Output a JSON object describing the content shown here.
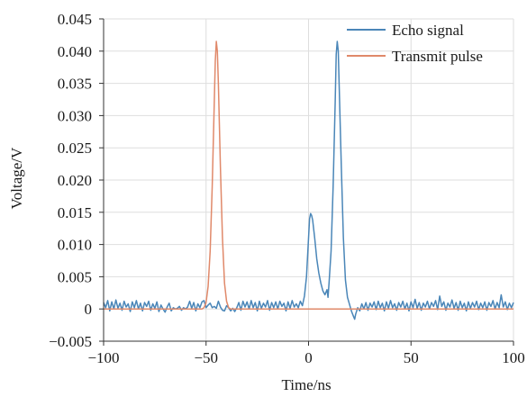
{
  "chart_data": {
    "type": "line",
    "xlabel": "Time/ns",
    "ylabel": "Voltage/V",
    "xlim": [
      -100,
      100
    ],
    "ylim": [
      -0.005,
      0.045
    ],
    "xticks": [
      -100,
      -50,
      0,
      50,
      100
    ],
    "xtick_labels": [
      "−100",
      "−50",
      "0",
      "50",
      "100"
    ],
    "yticks": [
      -0.005,
      0,
      0.005,
      0.01,
      0.015,
      0.02,
      0.025,
      0.03,
      0.035,
      0.04,
      0.045
    ],
    "ytick_labels": [
      "−0.005",
      "0",
      "0.005",
      "0.010",
      "0.015",
      "0.020",
      "0.025",
      "0.030",
      "0.035",
      "0.040",
      "0.045"
    ],
    "grid": true,
    "legend_position": "top-right",
    "series": [
      {
        "name": "Echo signal",
        "color": "#4a86b8",
        "points": [
          [
            -100,
            0.001
          ],
          [
            -99,
            0.0002
          ],
          [
            -98,
            0.0013
          ],
          [
            -97,
            -0.0003
          ],
          [
            -96,
            0.0011
          ],
          [
            -95,
            0.0
          ],
          [
            -94,
            0.0014
          ],
          [
            -93,
            0.0001
          ],
          [
            -92,
            0.0009
          ],
          [
            -91,
            -0.0002
          ],
          [
            -90,
            0.0012
          ],
          [
            -89,
            0.0003
          ],
          [
            -88,
            0.0008
          ],
          [
            -87,
            -0.0004
          ],
          [
            -86,
            0.0011
          ],
          [
            -85,
            0.0002
          ],
          [
            -84,
            0.0013
          ],
          [
            -83,
            0.0
          ],
          [
            -82,
            0.0009
          ],
          [
            -81,
            -0.0003
          ],
          [
            -80,
            0.001
          ],
          [
            -79,
            0.0004
          ],
          [
            -78,
            0.0012
          ],
          [
            -77,
            -0.0002
          ],
          [
            -76,
            0.0008
          ],
          [
            -75,
            0.0001
          ],
          [
            -74,
            0.0011
          ],
          [
            -73,
            -0.0004
          ],
          [
            -72,
            0.0006
          ],
          [
            -71,
            0.0
          ],
          [
            -70,
            -0.0005
          ],
          [
            -69,
            0.0003
          ],
          [
            -68,
            0.0009
          ],
          [
            -67,
            -0.0003
          ],
          [
            -66,
            0.0002
          ],
          [
            -65,
            0.0
          ],
          [
            -64,
            0.0001
          ],
          [
            -63,
            0.0004
          ],
          [
            -62,
            -0.0002
          ],
          [
            -61,
            0.0002
          ],
          [
            -60,
            0.0
          ],
          [
            -59,
            0.0003
          ],
          [
            -58,
            0.0012
          ],
          [
            -57,
            0.0001
          ],
          [
            -56,
            0.001
          ],
          [
            -55,
            -0.0003
          ],
          [
            -54,
            0.0008
          ],
          [
            -53,
            0.0002
          ],
          [
            -52,
            0.0011
          ],
          [
            -51,
            0.0013
          ],
          [
            -50,
            0.0002
          ],
          [
            -49,
            0.0006
          ],
          [
            -48,
            0.0009
          ],
          [
            -47,
            0.0002
          ],
          [
            -46,
            0.0004
          ],
          [
            -45,
            0.0001
          ],
          [
            -44,
            0.0012
          ],
          [
            -43,
            0.0003
          ],
          [
            -42,
            -0.0002
          ],
          [
            -41,
            -0.0003
          ],
          [
            -40,
            0.0005
          ],
          [
            -39,
            0.0002
          ],
          [
            -38,
            -0.0003
          ],
          [
            -37,
            0.0001
          ],
          [
            -36,
            -0.0004
          ],
          [
            -35,
            0.0002
          ],
          [
            -34,
            0.001
          ],
          [
            -33,
            -0.0002
          ],
          [
            -32,
            0.0012
          ],
          [
            -31,
            0.0003
          ],
          [
            -30,
            0.0011
          ],
          [
            -29,
            0.0
          ],
          [
            -28,
            0.0013
          ],
          [
            -27,
            0.0002
          ],
          [
            -26,
            0.001
          ],
          [
            -25,
            -0.0003
          ],
          [
            -24,
            0.0012
          ],
          [
            -23,
            0.0001
          ],
          [
            -22,
            0.0009
          ],
          [
            -21,
            0.0003
          ],
          [
            -20,
            0.0013
          ],
          [
            -19,
            -0.0002
          ],
          [
            -18,
            0.001
          ],
          [
            -17,
            0.0002
          ],
          [
            -16,
            0.0011
          ],
          [
            -15,
            0.0
          ],
          [
            -14,
            0.0012
          ],
          [
            -13,
            0.0004
          ],
          [
            -12,
            0.0009
          ],
          [
            -11,
            -0.0003
          ],
          [
            -10,
            0.0011
          ],
          [
            -9,
            0.0001
          ],
          [
            -8,
            0.0013
          ],
          [
            -7,
            0.0003
          ],
          [
            -6,
            0.0008
          ],
          [
            -5,
            0.0002
          ],
          [
            -4,
            0.0012
          ],
          [
            -3,
            0.0005
          ],
          [
            -2,
            0.002
          ],
          [
            -1,
            0.005
          ],
          [
            0,
            0.011
          ],
          [
            0.5,
            0.014
          ],
          [
            1,
            0.0148
          ],
          [
            1.5,
            0.0145
          ],
          [
            2,
            0.0138
          ],
          [
            3,
            0.011
          ],
          [
            4,
            0.0078
          ],
          [
            5,
            0.0056
          ],
          [
            6,
            0.004
          ],
          [
            7,
            0.0028
          ],
          [
            8,
            0.0022
          ],
          [
            9,
            0.003
          ],
          [
            9.5,
            0.0018
          ],
          [
            10,
            0.004
          ],
          [
            11,
            0.009
          ],
          [
            12,
            0.019
          ],
          [
            13,
            0.032
          ],
          [
            13.5,
            0.0395
          ],
          [
            14,
            0.0415
          ],
          [
            14.5,
            0.04
          ],
          [
            15,
            0.034
          ],
          [
            16,
            0.022
          ],
          [
            17,
            0.011
          ],
          [
            18,
            0.0045
          ],
          [
            19,
            0.0018
          ],
          [
            20,
            0.0007
          ],
          [
            21,
            -0.0004
          ],
          [
            22,
            -0.0012
          ],
          [
            22.5,
            -0.0016
          ],
          [
            23,
            -0.0008
          ],
          [
            24,
            0.0002
          ],
          [
            25,
            -0.0003
          ],
          [
            26,
            0.0008
          ],
          [
            27,
            0.0
          ],
          [
            28,
            0.001
          ],
          [
            29,
            -0.0002
          ],
          [
            30,
            0.0009
          ],
          [
            31,
            0.0003
          ],
          [
            32,
            0.0011
          ],
          [
            33,
            -0.0001
          ],
          [
            34,
            0.0012
          ],
          [
            35,
            0.0002
          ],
          [
            36,
            0.0009
          ],
          [
            37,
            -0.0003
          ],
          [
            38,
            0.0011
          ],
          [
            39,
            0.0001
          ],
          [
            40,
            0.0013
          ],
          [
            41,
            0.0002
          ],
          [
            42,
            0.0008
          ],
          [
            43,
            -0.0002
          ],
          [
            44,
            0.001
          ],
          [
            45,
            0.0003
          ],
          [
            46,
            0.0012
          ],
          [
            47,
            0.0
          ],
          [
            48,
            0.0009
          ],
          [
            49,
            -0.0003
          ],
          [
            50,
            0.0011
          ],
          [
            51,
            0.0002
          ],
          [
            52,
            0.0015
          ],
          [
            53,
            0.0001
          ],
          [
            54,
            0.001
          ],
          [
            55,
            -0.0002
          ],
          [
            56,
            0.0009
          ],
          [
            57,
            0.0003
          ],
          [
            58,
            0.0012
          ],
          [
            59,
            0.0
          ],
          [
            60,
            0.001
          ],
          [
            61,
            0.0004
          ],
          [
            62,
            0.0013
          ],
          [
            63,
            -0.0001
          ],
          [
            64,
            0.002
          ],
          [
            65,
            0.0004
          ],
          [
            66,
            0.0011
          ],
          [
            67,
            -0.0002
          ],
          [
            68,
            0.0009
          ],
          [
            69,
            0.0003
          ],
          [
            70,
            0.0014
          ],
          [
            71,
            0.0001
          ],
          [
            72,
            0.001
          ],
          [
            73,
            -0.0002
          ],
          [
            74,
            0.0012
          ],
          [
            75,
            0.0002
          ],
          [
            76,
            0.0009
          ],
          [
            77,
            -0.0003
          ],
          [
            78,
            0.0011
          ],
          [
            79,
            0.0001
          ],
          [
            80,
            0.001
          ],
          [
            81,
            0.0003
          ],
          [
            82,
            0.0012
          ],
          [
            83,
            -0.0001
          ],
          [
            84,
            0.0009
          ],
          [
            85,
            0.0002
          ],
          [
            86,
            0.0011
          ],
          [
            87,
            -0.0002
          ],
          [
            88,
            0.001
          ],
          [
            89,
            0.0004
          ],
          [
            90,
            0.0013
          ],
          [
            91,
            0.0
          ],
          [
            92,
            0.001
          ],
          [
            93,
            0.0002
          ],
          [
            94,
            0.0022
          ],
          [
            95,
            0.0003
          ],
          [
            96,
            0.0011
          ],
          [
            97,
            -0.0001
          ],
          [
            98,
            0.0009
          ],
          [
            99,
            0.0002
          ],
          [
            100,
            0.001
          ]
        ]
      },
      {
        "name": "Transmit pulse",
        "color": "#e0896a",
        "points": [
          [
            -100,
            0.0
          ],
          [
            -52,
            0.0
          ],
          [
            -51,
            0.0002
          ],
          [
            -50,
            0.001
          ],
          [
            -49,
            0.0035
          ],
          [
            -48,
            0.009
          ],
          [
            -47,
            0.019
          ],
          [
            -46,
            0.032
          ],
          [
            -45.5,
            0.0385
          ],
          [
            -45,
            0.0415
          ],
          [
            -44.5,
            0.04
          ],
          [
            -44,
            0.035
          ],
          [
            -43,
            0.022
          ],
          [
            -42,
            0.011
          ],
          [
            -41,
            0.004
          ],
          [
            -40,
            0.0012
          ],
          [
            -39,
            0.0002
          ],
          [
            -38,
            0.0
          ],
          [
            100,
            0.0
          ]
        ]
      }
    ]
  }
}
